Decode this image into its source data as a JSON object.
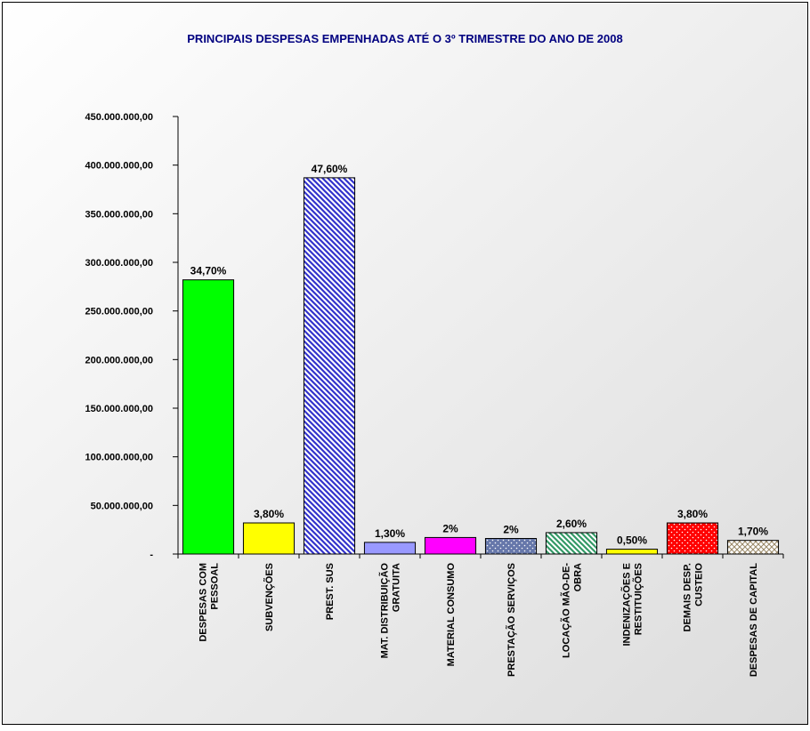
{
  "chart_data": {
    "type": "bar",
    "title": "PRINCIPAIS DESPESAS EMPENHADAS ATÉ O 3º TRIMESTRE DO ANO DE 2008",
    "categories": [
      "DESPESAS COM\nPESSOAL",
      "SUBVENÇÕES",
      "PREST. SUS",
      "MAT. DISTRIBUIÇÃO\nGRATUITA",
      "MATERIAL CONSUMO",
      "PRESTAÇÃO SERVIÇOS",
      "LOCAÇÃO MÃO-DE-\nOBRA",
      "INDENIZAÇÕES E\nRESTITUIÇÕES",
      "DEMAIS DESP.\nCUSTEIO",
      "DESPESAS DE CAPITAL"
    ],
    "values": [
      282000000,
      32000000,
      387000000,
      12000000,
      17000000,
      16000000,
      22000000,
      5000000,
      32000000,
      14000000
    ],
    "data_labels": [
      "34,70%",
      "3,80%",
      "47,60%",
      "1,30%",
      "2%",
      "2%",
      "2,60%",
      "0,50%",
      "3,80%",
      "1,70%"
    ],
    "colors": [
      "#00ff00",
      "#ffff00",
      "#3333cc",
      "#9999ff",
      "#ff00ff",
      "#6677aa",
      "#339966",
      "#ffff00",
      "#ff0000",
      "#998866"
    ],
    "patterns": [
      "solid",
      "solid",
      "diagonal",
      "solid",
      "solid",
      "dots",
      "diagonal",
      "solid",
      "dots",
      "cross"
    ],
    "ylim": [
      0,
      450000000
    ],
    "yticks": [
      {
        "value": 0,
        "label": "-"
      },
      {
        "value": 50000000,
        "label": "50.000.000,00"
      },
      {
        "value": 100000000,
        "label": "100.000.000,00"
      },
      {
        "value": 150000000,
        "label": "150.000.000,00"
      },
      {
        "value": 200000000,
        "label": "200.000.000,00"
      },
      {
        "value": 250000000,
        "label": "250.000.000,00"
      },
      {
        "value": 300000000,
        "label": "300.000.000,00"
      },
      {
        "value": 350000000,
        "label": "350.000.000,00"
      },
      {
        "value": 400000000,
        "label": "400.000.000,00"
      },
      {
        "value": 450000000,
        "label": "450.000.000,00"
      }
    ],
    "grid": false
  }
}
